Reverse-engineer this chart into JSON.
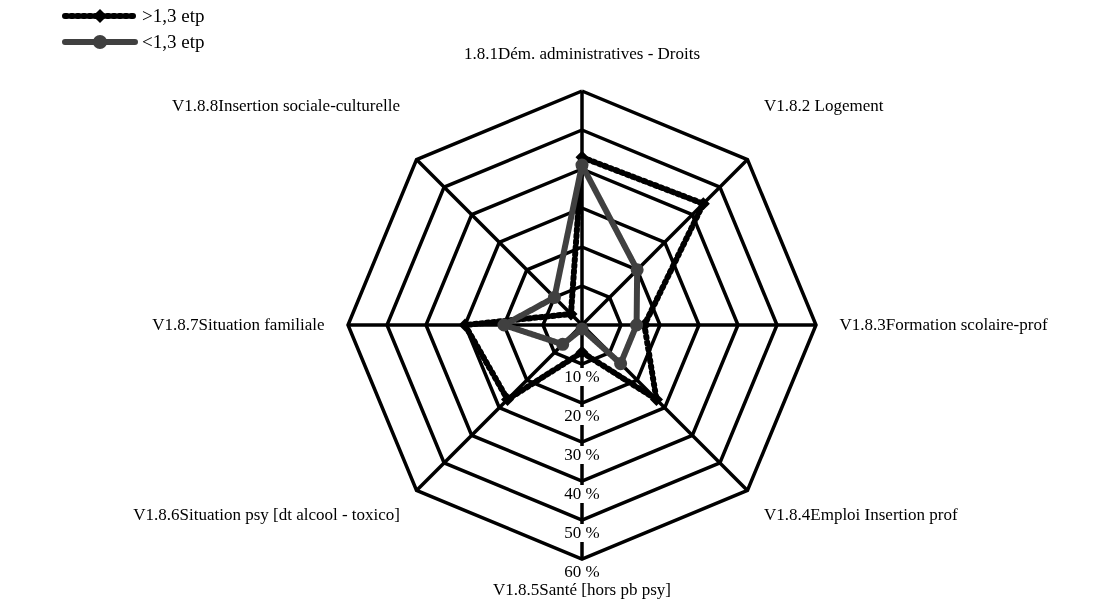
{
  "chart_data": {
    "type": "radar",
    "categories": [
      "1.8.1Dém. administratives - Droits",
      "V1.8.2 Logement",
      "V1.8.3Formation scolaire-prof",
      "V1.8.4Emploi Insertion prof",
      "V1.8.5Santé [hors pb psy]",
      "V1.8.6Situation psy [dt alcool - toxico]",
      "V1.8.7Situation familiale",
      "V1.8.8Insertion sociale-culturelle"
    ],
    "series": [
      {
        "name": ">1,3 etp",
        "color": "#000000",
        "line_style": "dotted",
        "marker": "diamond",
        "values": [
          43,
          44,
          16,
          27,
          7,
          27,
          30,
          4
        ]
      },
      {
        "name": "<1,3 etp",
        "color": "#404040",
        "line_style": "solid",
        "marker": "circle",
        "values": [
          41,
          20,
          14,
          14,
          1,
          7,
          20,
          10
        ]
      }
    ],
    "ylim": [
      0,
      60
    ],
    "yticks": [
      {
        "value": 10,
        "label": "10 %"
      },
      {
        "value": 20,
        "label": "20 %"
      },
      {
        "value": 30,
        "label": "30 %"
      },
      {
        "value": 40,
        "label": "40 %"
      },
      {
        "value": 50,
        "label": "50 %"
      },
      {
        "value": 60,
        "label": "60 %"
      }
    ],
    "grid": true,
    "legend": "top left"
  }
}
